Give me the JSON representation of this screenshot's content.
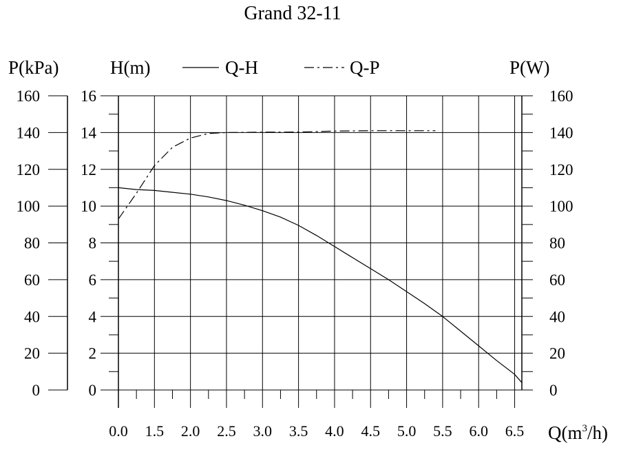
{
  "chart_data": {
    "type": "line",
    "title": "Grand 32-11",
    "left_outer_axis": {
      "label": "P(kPa)",
      "ticks": [
        "160",
        "140",
        "120",
        "100",
        "80",
        "60",
        "40",
        "20",
        "0"
      ],
      "range": [
        0,
        160
      ]
    },
    "left_inner_axis": {
      "label": "H(m)",
      "ticks": [
        "16",
        "14",
        "12",
        "10",
        "8",
        "6",
        "4",
        "2",
        "0"
      ],
      "range": [
        0,
        16
      ]
    },
    "right_axis": {
      "label": "P(W)",
      "ticks": [
        "160",
        "140",
        "120",
        "100",
        "80",
        "60",
        "40",
        "20",
        "0"
      ],
      "range": [
        0,
        160
      ]
    },
    "x_axis": {
      "label_main": "Q(m",
      "label_sup": "3",
      "label_end": "/h)",
      "ticks": [
        "0.0",
        "1.5",
        "2.0",
        "2.5",
        "3.0",
        "3.5",
        "4.0",
        "4.5",
        "5.0",
        "5.5",
        "6.0",
        "6.5"
      ],
      "range": [
        1.0,
        6.6
      ]
    },
    "grid": true,
    "legend": {
      "placement": "top",
      "items": [
        {
          "name": "Q-H",
          "style": "solid"
        },
        {
          "name": "Q-P",
          "style": "dash-dot"
        }
      ]
    },
    "series": [
      {
        "name": "Q-H",
        "axis": "H(m)",
        "x": [
          1.0,
          1.25,
          1.5,
          1.75,
          2.0,
          2.25,
          2.5,
          2.75,
          3.0,
          3.25,
          3.5,
          3.75,
          4.0,
          4.25,
          4.5,
          4.75,
          5.0,
          5.25,
          5.5,
          5.75,
          6.0,
          6.25,
          6.5,
          6.6
        ],
        "y": [
          11.0,
          10.9,
          10.85,
          10.75,
          10.65,
          10.5,
          10.3,
          10.05,
          9.75,
          9.4,
          8.95,
          8.4,
          7.8,
          7.2,
          6.6,
          6.0,
          5.35,
          4.7,
          4.0,
          3.2,
          2.4,
          1.6,
          0.85,
          0.4
        ]
      },
      {
        "name": "Q-P",
        "axis": "P(W)",
        "x": [
          1.0,
          1.25,
          1.5,
          1.75,
          2.0,
          2.25,
          2.5,
          3.0,
          3.5,
          4.0,
          4.5,
          5.0,
          5.4
        ],
        "y": [
          93,
          107,
          122,
          132,
          137,
          139.5,
          140,
          140.2,
          140.3,
          140.8,
          141,
          141,
          141
        ]
      }
    ]
  }
}
